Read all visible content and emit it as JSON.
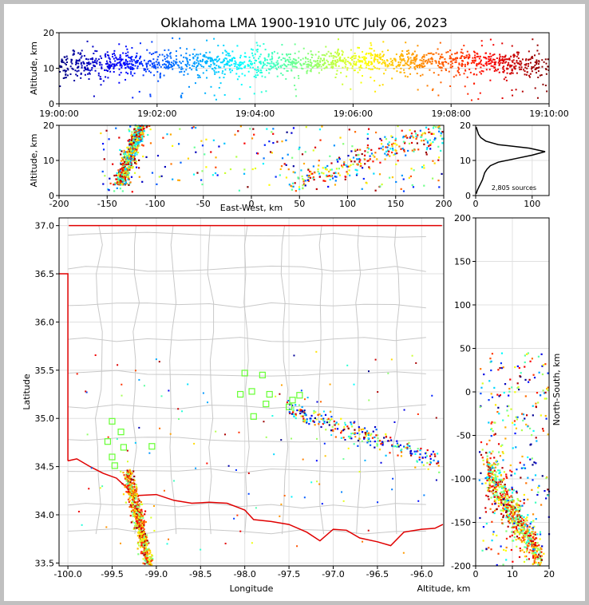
{
  "figure": {
    "title": "Oklahoma LMA 1900-1910 UTC July 06, 2023"
  },
  "chart_data": [
    {
      "panel": "time-altitude",
      "type": "scatter",
      "xlabel": "",
      "ylabel": "Altitude, km",
      "x_tick_labels": [
        "19:00:00",
        "19:02:00",
        "19:04:00",
        "19:06:00",
        "19:08:00",
        "19:10:00"
      ],
      "y_ticks": [
        0,
        10,
        20
      ],
      "xlim_minutes": [
        0,
        10
      ],
      "ylim": [
        0,
        20
      ],
      "color_encoding": "time (blue to red)",
      "activity_by_minute": [
        {
          "minute_range": [
            0,
            1
          ],
          "altitude_center_km": 11,
          "altitude_spread_km": 4
        },
        {
          "minute_range": [
            1,
            3
          ],
          "altitude_center_km": 11.5,
          "altitude_spread_km": 3
        },
        {
          "minute_range": [
            3,
            5
          ],
          "altitude_center_km": 11.5,
          "altitude_spread_km": 3
        },
        {
          "minute_range": [
            5,
            7
          ],
          "altitude_center_km": 12,
          "altitude_spread_km": 3
        },
        {
          "minute_range": [
            7,
            9
          ],
          "altitude_center_km": 12,
          "altitude_spread_km": 3
        },
        {
          "minute_range": [
            9,
            10
          ],
          "altitude_center_km": 11,
          "altitude_spread_km": 3.5
        }
      ]
    },
    {
      "panel": "east-west vs altitude",
      "type": "scatter",
      "xlabel": "East-West, km",
      "ylabel": "Altitude, km",
      "x_ticks": [
        -200,
        -150,
        -100,
        -50,
        0,
        50,
        100,
        150,
        200
      ],
      "y_ticks": [
        0,
        10,
        20
      ],
      "xlim": [
        -200,
        200
      ],
      "ylim": [
        0,
        20
      ]
    },
    {
      "panel": "altitude histogram",
      "type": "line",
      "x_ticks": [
        0,
        100
      ],
      "y_ticks": [
        0,
        10,
        20
      ],
      "xlim": [
        0,
        130
      ],
      "ylim": [
        0,
        20
      ],
      "annotation": "2,805 sources",
      "profile": [
        {
          "alt": 0.5,
          "count": 1
        },
        {
          "alt": 1.5,
          "count": 3
        },
        {
          "alt": 2.5,
          "count": 6
        },
        {
          "alt": 3.5,
          "count": 9
        },
        {
          "alt": 4.5,
          "count": 12
        },
        {
          "alt": 5.5,
          "count": 14
        },
        {
          "alt": 6.5,
          "count": 16
        },
        {
          "alt": 7.5,
          "count": 20
        },
        {
          "alt": 8.5,
          "count": 26
        },
        {
          "alt": 9.5,
          "count": 40
        },
        {
          "alt": 10.5,
          "count": 70
        },
        {
          "alt": 11.5,
          "count": 100
        },
        {
          "alt": 12.5,
          "count": 123
        },
        {
          "alt": 13.5,
          "count": 95
        },
        {
          "alt": 14.5,
          "count": 40
        },
        {
          "alt": 15.5,
          "count": 18
        },
        {
          "alt": 16.5,
          "count": 9
        },
        {
          "alt": 17.5,
          "count": 5
        },
        {
          "alt": 18.5,
          "count": 3
        },
        {
          "alt": 19.5,
          "count": 1
        }
      ]
    },
    {
      "panel": "plan view map",
      "type": "scatter",
      "xlabel": "Longitude",
      "ylabel": "Latitude",
      "x_ticks": [
        -100.0,
        -99.5,
        -99.0,
        -98.5,
        -98.0,
        -97.5,
        -97.0,
        -96.5,
        -96.0
      ],
      "y_ticks": [
        33.5,
        34.0,
        34.5,
        35.0,
        35.5,
        36.0,
        36.5,
        37.0
      ],
      "xlim": [
        -100.1,
        -95.75
      ],
      "ylim": [
        33.47,
        37.08
      ],
      "stations": [
        {
          "lon": -99.5,
          "lat": 34.97
        },
        {
          "lon": -99.55,
          "lat": 34.76
        },
        {
          "lon": -99.4,
          "lat": 34.86
        },
        {
          "lon": -99.37,
          "lat": 34.7
        },
        {
          "lon": -99.5,
          "lat": 34.6
        },
        {
          "lon": -99.47,
          "lat": 34.51
        },
        {
          "lon": -99.05,
          "lat": 34.71
        },
        {
          "lon": -98.0,
          "lat": 35.47
        },
        {
          "lon": -97.8,
          "lat": 35.45
        },
        {
          "lon": -97.92,
          "lat": 35.28
        },
        {
          "lon": -98.05,
          "lat": 35.25
        },
        {
          "lon": -97.72,
          "lat": 35.25
        },
        {
          "lon": -97.38,
          "lat": 35.24
        },
        {
          "lon": -97.46,
          "lat": 35.19
        },
        {
          "lon": -97.76,
          "lat": 35.15
        },
        {
          "lon": -97.5,
          "lat": 35.12
        },
        {
          "lon": -97.9,
          "lat": 35.02
        }
      ]
    },
    {
      "panel": "altitude vs north-south",
      "type": "scatter",
      "xlabel": "Altitude, km",
      "ylabel": "North-South, km",
      "x_ticks": [
        0,
        10,
        20
      ],
      "y_ticks": [
        -200,
        -150,
        -100,
        -50,
        0,
        50,
        100,
        150,
        200
      ],
      "xlim": [
        0,
        20
      ],
      "ylim": [
        -200,
        200
      ]
    }
  ]
}
